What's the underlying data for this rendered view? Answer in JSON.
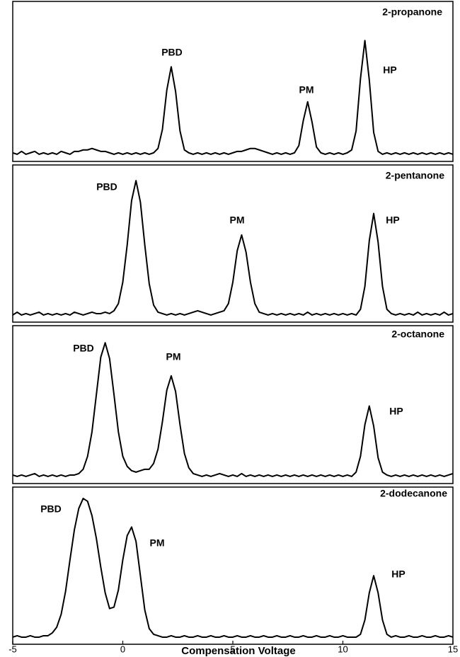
{
  "chart_data": [
    {
      "type": "line",
      "title": "2-propanone",
      "annotations": [
        "PBD",
        "PM",
        "HP"
      ],
      "xlim": [
        -5,
        15
      ],
      "ylim": [
        0,
        100
      ],
      "color": "#000000",
      "x": [
        -5,
        -4.8,
        -4.6,
        -4.4,
        -4.2,
        -4,
        -3.8,
        -3.6,
        -3.4,
        -3.2,
        -3,
        -2.8,
        -2.6,
        -2.4,
        -2.2,
        -2,
        -1.8,
        -1.6,
        -1.4,
        -1.2,
        -1,
        -0.8,
        -0.6,
        -0.4,
        -0.2,
        0,
        0.2,
        0.4,
        0.6,
        0.8,
        1,
        1.2,
        1.4,
        1.6,
        1.8,
        2,
        2.2,
        2.4,
        2.6,
        2.8,
        3,
        3.2,
        3.4,
        3.6,
        3.8,
        4,
        4.2,
        4.4,
        4.6,
        4.8,
        5,
        5.2,
        5.4,
        5.6,
        5.8,
        6,
        6.2,
        6.4,
        6.6,
        6.8,
        7,
        7.2,
        7.4,
        7.6,
        7.8,
        8,
        8.2,
        8.4,
        8.6,
        8.8,
        9,
        9.2,
        9.4,
        9.6,
        9.8,
        10,
        10.2,
        10.4,
        10.6,
        10.8,
        11,
        11.2,
        11.4,
        11.6,
        11.8,
        12,
        12.2,
        12.4,
        12.6,
        12.8,
        13,
        13.2,
        13.4,
        13.6,
        13.8,
        14,
        14.2,
        14.4,
        14.6,
        14.8,
        15
      ],
      "values": [
        2,
        1,
        3,
        1,
        2,
        3,
        1,
        2,
        1,
        2,
        1,
        3,
        2,
        1,
        3,
        3,
        4,
        4,
        5,
        4,
        3,
        3,
        2,
        1,
        2,
        1,
        2,
        1,
        2,
        1,
        2,
        1,
        2,
        5,
        18,
        45,
        61,
        44,
        17,
        4,
        2,
        1,
        2,
        1,
        2,
        1,
        2,
        1,
        2,
        1,
        2,
        3,
        3,
        4,
        5,
        5,
        4,
        3,
        2,
        1,
        2,
        1,
        2,
        1,
        2,
        7,
        24,
        37,
        23,
        6,
        2,
        1,
        2,
        1,
        2,
        1,
        2,
        4,
        17,
        53,
        79,
        52,
        16,
        3,
        1,
        2,
        1,
        2,
        1,
        2,
        1,
        2,
        1,
        2,
        1,
        2,
        1,
        2,
        1,
        2,
        1
      ]
    },
    {
      "type": "line",
      "title": "2-pentanone",
      "annotations": [
        "PBD",
        "PM",
        "HP"
      ],
      "xlim": [
        -5,
        15
      ],
      "ylim": [
        0,
        100
      ],
      "color": "#000000",
      "x": [
        -5,
        -4.8,
        -4.6,
        -4.4,
        -4.2,
        -4,
        -3.8,
        -3.6,
        -3.4,
        -3.2,
        -3,
        -2.8,
        -2.6,
        -2.4,
        -2.2,
        -2,
        -1.8,
        -1.6,
        -1.4,
        -1.2,
        -1,
        -0.8,
        -0.6,
        -0.4,
        -0.2,
        0,
        0.2,
        0.4,
        0.6,
        0.8,
        1,
        1.2,
        1.4,
        1.6,
        1.8,
        2,
        2.2,
        2.4,
        2.6,
        2.8,
        3,
        3.2,
        3.4,
        3.6,
        3.8,
        4,
        4.2,
        4.4,
        4.6,
        4.8,
        5,
        5.2,
        5.4,
        5.6,
        5.8,
        6,
        6.2,
        6.4,
        6.6,
        6.8,
        7,
        7.2,
        7.4,
        7.6,
        7.8,
        8,
        8.2,
        8.4,
        8.6,
        8.8,
        9,
        9.2,
        9.4,
        9.6,
        9.8,
        10,
        10.2,
        10.4,
        10.6,
        10.8,
        11,
        11.2,
        11.4,
        11.6,
        11.8,
        12,
        12.2,
        12.4,
        12.6,
        12.8,
        13,
        13.2,
        13.4,
        13.6,
        13.8,
        14,
        14.2,
        14.4,
        14.6,
        14.8,
        15
      ],
      "values": [
        1,
        3,
        1,
        2,
        1,
        2,
        3,
        1,
        2,
        1,
        2,
        1,
        2,
        1,
        3,
        2,
        1,
        2,
        3,
        2,
        2,
        3,
        2,
        4,
        9,
        24,
        50,
        81,
        95,
        80,
        50,
        23,
        8,
        3,
        2,
        1,
        2,
        1,
        2,
        1,
        2,
        3,
        4,
        3,
        2,
        1,
        2,
        3,
        4,
        9,
        24,
        46,
        57,
        45,
        24,
        9,
        3,
        2,
        1,
        2,
        1,
        2,
        1,
        2,
        1,
        2,
        1,
        3,
        1,
        2,
        1,
        2,
        1,
        2,
        1,
        2,
        1,
        2,
        1,
        5,
        21,
        53,
        72,
        52,
        21,
        5,
        2,
        1,
        2,
        1,
        2,
        1,
        3,
        1,
        2,
        1,
        2,
        1,
        3,
        1,
        2
      ]
    },
    {
      "type": "line",
      "title": "2-octanone",
      "annotations": [
        "PBD",
        "PM",
        "HP"
      ],
      "xlim": [
        -5,
        15
      ],
      "ylim": [
        0,
        100
      ],
      "color": "#000000",
      "x": [
        -5,
        -4.8,
        -4.6,
        -4.4,
        -4.2,
        -4,
        -3.8,
        -3.6,
        -3.4,
        -3.2,
        -3,
        -2.8,
        -2.6,
        -2.4,
        -2.2,
        -2,
        -1.8,
        -1.6,
        -1.4,
        -1.2,
        -1,
        -0.8,
        -0.6,
        -0.4,
        -0.2,
        0,
        0.2,
        0.4,
        0.6,
        0.8,
        1,
        1.2,
        1.4,
        1.6,
        1.8,
        2,
        2.2,
        2.4,
        2.6,
        2.8,
        3,
        3.2,
        3.4,
        3.6,
        3.8,
        4,
        4.2,
        4.4,
        4.6,
        4.8,
        5,
        5.2,
        5.4,
        5.6,
        5.8,
        6,
        6.2,
        6.4,
        6.6,
        6.8,
        7,
        7.2,
        7.4,
        7.6,
        7.8,
        8,
        8.2,
        8.4,
        8.6,
        8.8,
        9,
        9.2,
        9.4,
        9.6,
        9.8,
        10,
        10.2,
        10.4,
        10.6,
        10.8,
        11,
        11.2,
        11.4,
        11.6,
        11.8,
        12,
        12.2,
        12.4,
        12.6,
        12.8,
        13,
        13.2,
        13.4,
        13.6,
        13.8,
        14,
        14.2,
        14.4,
        14.6,
        14.8,
        15
      ],
      "values": [
        2,
        1,
        2,
        1,
        2,
        3,
        1,
        2,
        1,
        2,
        1,
        2,
        1,
        2,
        2,
        3,
        6,
        15,
        32,
        58,
        84,
        94,
        83,
        58,
        32,
        15,
        8,
        5,
        4,
        5,
        6,
        6,
        10,
        20,
        39,
        61,
        71,
        60,
        37,
        17,
        7,
        3,
        2,
        1,
        2,
        1,
        2,
        3,
        2,
        1,
        2,
        1,
        3,
        1,
        2,
        1,
        2,
        1,
        2,
        1,
        2,
        1,
        2,
        1,
        2,
        1,
        2,
        1,
        2,
        1,
        2,
        1,
        2,
        1,
        2,
        1,
        2,
        1,
        4,
        15,
        37,
        50,
        36,
        14,
        4,
        2,
        1,
        2,
        1,
        2,
        1,
        2,
        1,
        2,
        1,
        2,
        1,
        2,
        1,
        2,
        3
      ]
    },
    {
      "type": "line",
      "title": "2-dodecanone",
      "annotations": [
        "PBD",
        "PM",
        "HP"
      ],
      "xlim": [
        -5,
        15
      ],
      "ylim": [
        0,
        100
      ],
      "color": "#000000",
      "xlabel": "Compensation Voltage",
      "xticks": [
        -5,
        0,
        5,
        10,
        15
      ],
      "x": [
        -5,
        -4.8,
        -4.6,
        -4.4,
        -4.2,
        -4,
        -3.8,
        -3.6,
        -3.4,
        -3.2,
        -3,
        -2.8,
        -2.6,
        -2.4,
        -2.2,
        -2,
        -1.8,
        -1.6,
        -1.4,
        -1.2,
        -1,
        -0.8,
        -0.6,
        -0.4,
        -0.2,
        0,
        0.2,
        0.4,
        0.6,
        0.8,
        1,
        1.2,
        1.4,
        1.6,
        1.8,
        2,
        2.2,
        2.4,
        2.6,
        2.8,
        3,
        3.2,
        3.4,
        3.6,
        3.8,
        4,
        4.2,
        4.4,
        4.6,
        4.8,
        5,
        5.2,
        5.4,
        5.6,
        5.8,
        6,
        6.2,
        6.4,
        6.6,
        6.8,
        7,
        7.2,
        7.4,
        7.6,
        7.8,
        8,
        8.2,
        8.4,
        8.6,
        8.8,
        9,
        9.2,
        9.4,
        9.6,
        9.8,
        10,
        10.2,
        10.4,
        10.6,
        10.8,
        11,
        11.2,
        11.4,
        11.6,
        11.8,
        12,
        12.2,
        12.4,
        12.6,
        12.8,
        13,
        13.2,
        13.4,
        13.6,
        13.8,
        14,
        14.2,
        14.4,
        14.6,
        14.8,
        15
      ],
      "values": [
        1,
        2,
        1,
        1,
        2,
        1,
        1,
        2,
        2,
        4,
        8,
        17,
        33,
        55,
        76,
        91,
        98,
        96,
        86,
        70,
        50,
        32,
        21,
        22,
        34,
        55,
        72,
        78,
        68,
        44,
        20,
        7,
        3,
        2,
        1,
        1,
        2,
        1,
        1,
        2,
        1,
        1,
        2,
        1,
        1,
        2,
        1,
        1,
        2,
        1,
        1,
        2,
        1,
        1,
        2,
        1,
        1,
        2,
        1,
        1,
        2,
        1,
        1,
        2,
        1,
        1,
        2,
        1,
        1,
        2,
        1,
        1,
        2,
        1,
        1,
        2,
        1,
        1,
        1,
        3,
        13,
        32,
        44,
        32,
        13,
        3,
        1,
        2,
        1,
        1,
        2,
        1,
        1,
        2,
        1,
        1,
        2,
        1,
        1,
        2,
        1
      ]
    }
  ]
}
